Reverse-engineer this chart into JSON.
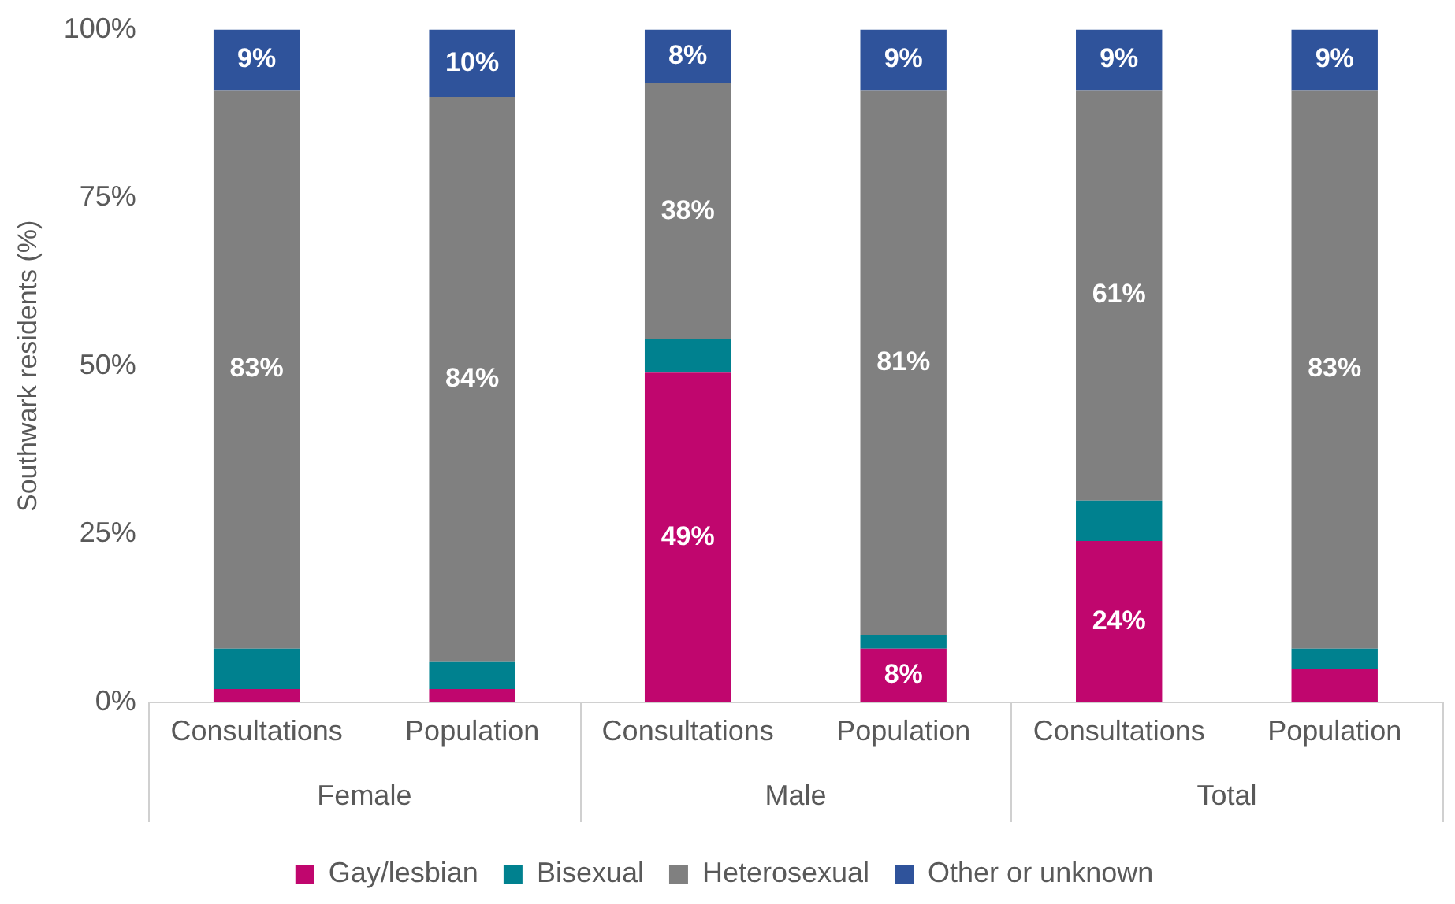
{
  "chart_data": {
    "type": "bar",
    "stacked": true,
    "ylabel": "Southwark residents (%)",
    "categories": [
      "Consultations",
      "Population",
      "Consultations",
      "Population",
      "Consultations",
      "Population"
    ],
    "annotations": [
      "Female",
      "Male",
      "Total"
    ],
    "ylim": [
      0,
      100
    ],
    "yticks": [
      {
        "value": 0,
        "label": "0%"
      },
      {
        "value": 25,
        "label": "25%"
      },
      {
        "value": 50,
        "label": "50%"
      },
      {
        "value": 75,
        "label": "75%"
      },
      {
        "value": 100,
        "label": "100%"
      }
    ],
    "grid": false,
    "legend": "bottom",
    "series": [
      {
        "name": "Gay/lesbian",
        "color": "#c0066e",
        "values": [
          2,
          2,
          49,
          8,
          24,
          5
        ],
        "value_labels": [
          null,
          null,
          "49%",
          "8%",
          "24%",
          null
        ]
      },
      {
        "name": "Bisexual",
        "color": "#00818f",
        "values": [
          6,
          4,
          5,
          2,
          6,
          3
        ],
        "value_labels": [
          null,
          null,
          null,
          null,
          null,
          null
        ]
      },
      {
        "name": "Heterosexual",
        "color": "#808080",
        "values": [
          83,
          84,
          38,
          81,
          61,
          83
        ],
        "value_labels": [
          "83%",
          "84%",
          "38%",
          "81%",
          "61%",
          "83%"
        ]
      },
      {
        "name": "Other or unknown",
        "color": "#2f539b",
        "values": [
          9,
          10,
          8,
          9,
          9,
          9
        ],
        "value_labels": [
          "9%",
          "10%",
          "8%",
          "9%",
          "9%",
          "9%"
        ]
      }
    ]
  }
}
